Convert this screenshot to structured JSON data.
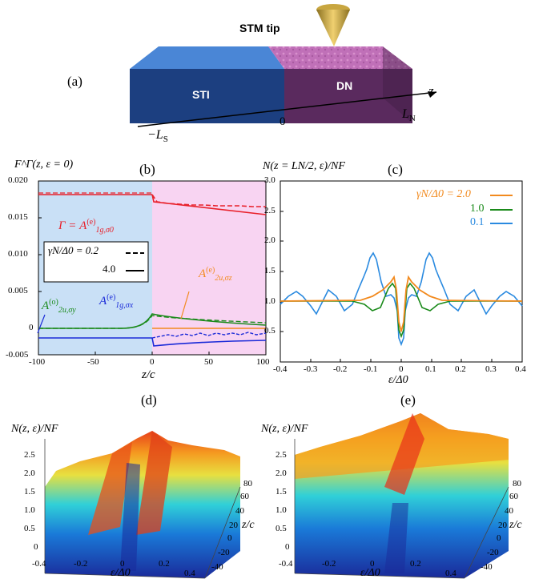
{
  "panel_a": {
    "letter": "(a)",
    "tip_label": "STM tip",
    "left_block": "STI",
    "right_block": "DN",
    "axis_label": "z",
    "zero_label": "0",
    "left_end": "−L",
    "left_end_sub": "S",
    "right_end": "L",
    "right_end_sub": "N",
    "colors": {
      "sti": "#4a86d6",
      "dn": "#b560a8",
      "sti_front": "#1c3f80",
      "dn_front": "#5a2a5e"
    }
  },
  "panel_b": {
    "letter": "(b)",
    "ylabel": "F^Γ(z, ε = 0)",
    "xlabel": "z/c",
    "legend_line1": "γN/Δ0 = 0.2",
    "legend_line2": "4.0",
    "annotations": {
      "gamma": "Γ = A",
      "a1g_sigma0_sup": "(e)",
      "a1g_sigma0_sub": "1g,σ0",
      "a2u_sigmay_sup": "(o)",
      "a2u_sigmay_sub": "2u,σy",
      "a1g_sigmax_sup": "(e)",
      "a1g_sigmax_sub": "1g,σx",
      "a2u_sigmaz_sup": "(e)",
      "a2u_sigmaz_sub": "2u,σz",
      "A": "A"
    },
    "xticks": [
      "-100",
      "-50",
      "0",
      "50",
      "100"
    ],
    "yticks": [
      "0.020",
      "0.015",
      "0.010",
      "0.005",
      "0",
      "-0.005"
    ],
    "colors": {
      "red": "#e8202a",
      "green": "#1a8a1a",
      "blue": "#1a2ad8",
      "orange": "#f28a1e",
      "bg_left": "#c9e0f6",
      "bg_right": "#f8d4f2"
    }
  },
  "panel_c": {
    "letter": "(c)",
    "ylabel": "N(z = LN/2, ε)/NF",
    "xlabel": "ε/Δ0",
    "legend": [
      {
        "label": "γN/Δ0 = 2.0",
        "color": "#f28a1e"
      },
      {
        "label": "1.0",
        "color": "#1a8a1a"
      },
      {
        "label": "0.1",
        "color": "#2a8ae0"
      }
    ],
    "xticks": [
      "-0.4",
      "-0.3",
      "-0.2",
      "-0.1",
      "0",
      "0.1",
      "0.2",
      "0.3",
      "0.4"
    ],
    "yticks": [
      "3.0",
      "2.5",
      "2.0",
      "1.5",
      "1.0",
      "0.5",
      "0"
    ]
  },
  "panel_d": {
    "letter": "(d)",
    "zlabel": "N(z, ε)/NF",
    "zticks": [
      "2.5",
      "2.0",
      "1.5",
      "1.0",
      "0.5",
      "0"
    ],
    "xticks": [
      "-0.4",
      "-0.2",
      "0",
      "0.2",
      "0.4"
    ],
    "yticks": [
      "80",
      "60",
      "40",
      "20",
      "0",
      "-20",
      "-40"
    ],
    "xlabel": "ε/Δ0",
    "ylabel": "z/c"
  },
  "panel_e": {
    "letter": "(e)",
    "zlabel": "N(z, ε)/NF",
    "zticks": [
      "2.5",
      "2.0",
      "1.5",
      "1.0",
      "0.5",
      "0"
    ],
    "xticks": [
      "-0.4",
      "-0.2",
      "0",
      "0.2",
      "0.4"
    ],
    "yticks": [
      "80",
      "60",
      "40",
      "20",
      "0",
      "-20",
      "-40"
    ],
    "xlabel": "ε/Δ0",
    "ylabel": "z/c"
  }
}
